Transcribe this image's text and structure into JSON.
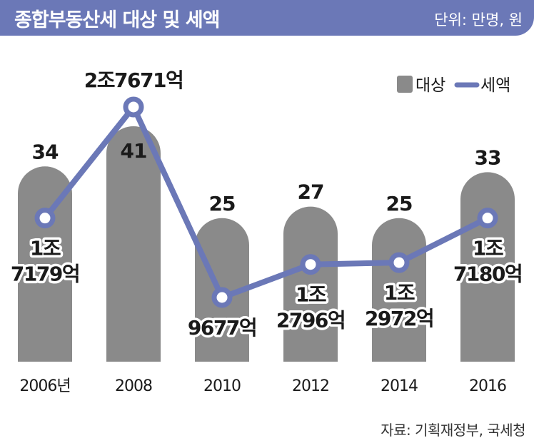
{
  "header": {
    "title": "종합부동산세 대상 및 세액",
    "unit": "단위: 만명, 원"
  },
  "source": "자료: 기획재정부, 국세청",
  "colors": {
    "header_bg": "#6b78b7",
    "bar": "#8a8a8a",
    "line": "#6b78b7",
    "text": "#1a1a1a"
  },
  "chart_data": {
    "type": "bar",
    "title": "종합부동산세 대상 및 세액",
    "categories": [
      "2006년",
      "2008",
      "2010",
      "2012",
      "2014",
      "2016"
    ],
    "series": [
      {
        "name": "대상",
        "type": "bar",
        "values": [
          34,
          41,
          25,
          27,
          25,
          33
        ],
        "labels": [
          "34",
          "41",
          "25",
          "27",
          "25",
          "33"
        ]
      },
      {
        "name": "세액",
        "type": "line",
        "values": [
          17179,
          27671,
          9677,
          12796,
          12972,
          17180
        ],
        "labels": [
          [
            "1조",
            "7179억"
          ],
          [
            "2조7671억"
          ],
          [
            "9677억"
          ],
          [
            "1조",
            "2796억"
          ],
          [
            "1조",
            "2972억"
          ],
          [
            "1조",
            "7180억"
          ]
        ]
      }
    ],
    "legend": {
      "position": "top-right",
      "items": [
        "대상",
        "세액"
      ]
    },
    "grid": false
  }
}
